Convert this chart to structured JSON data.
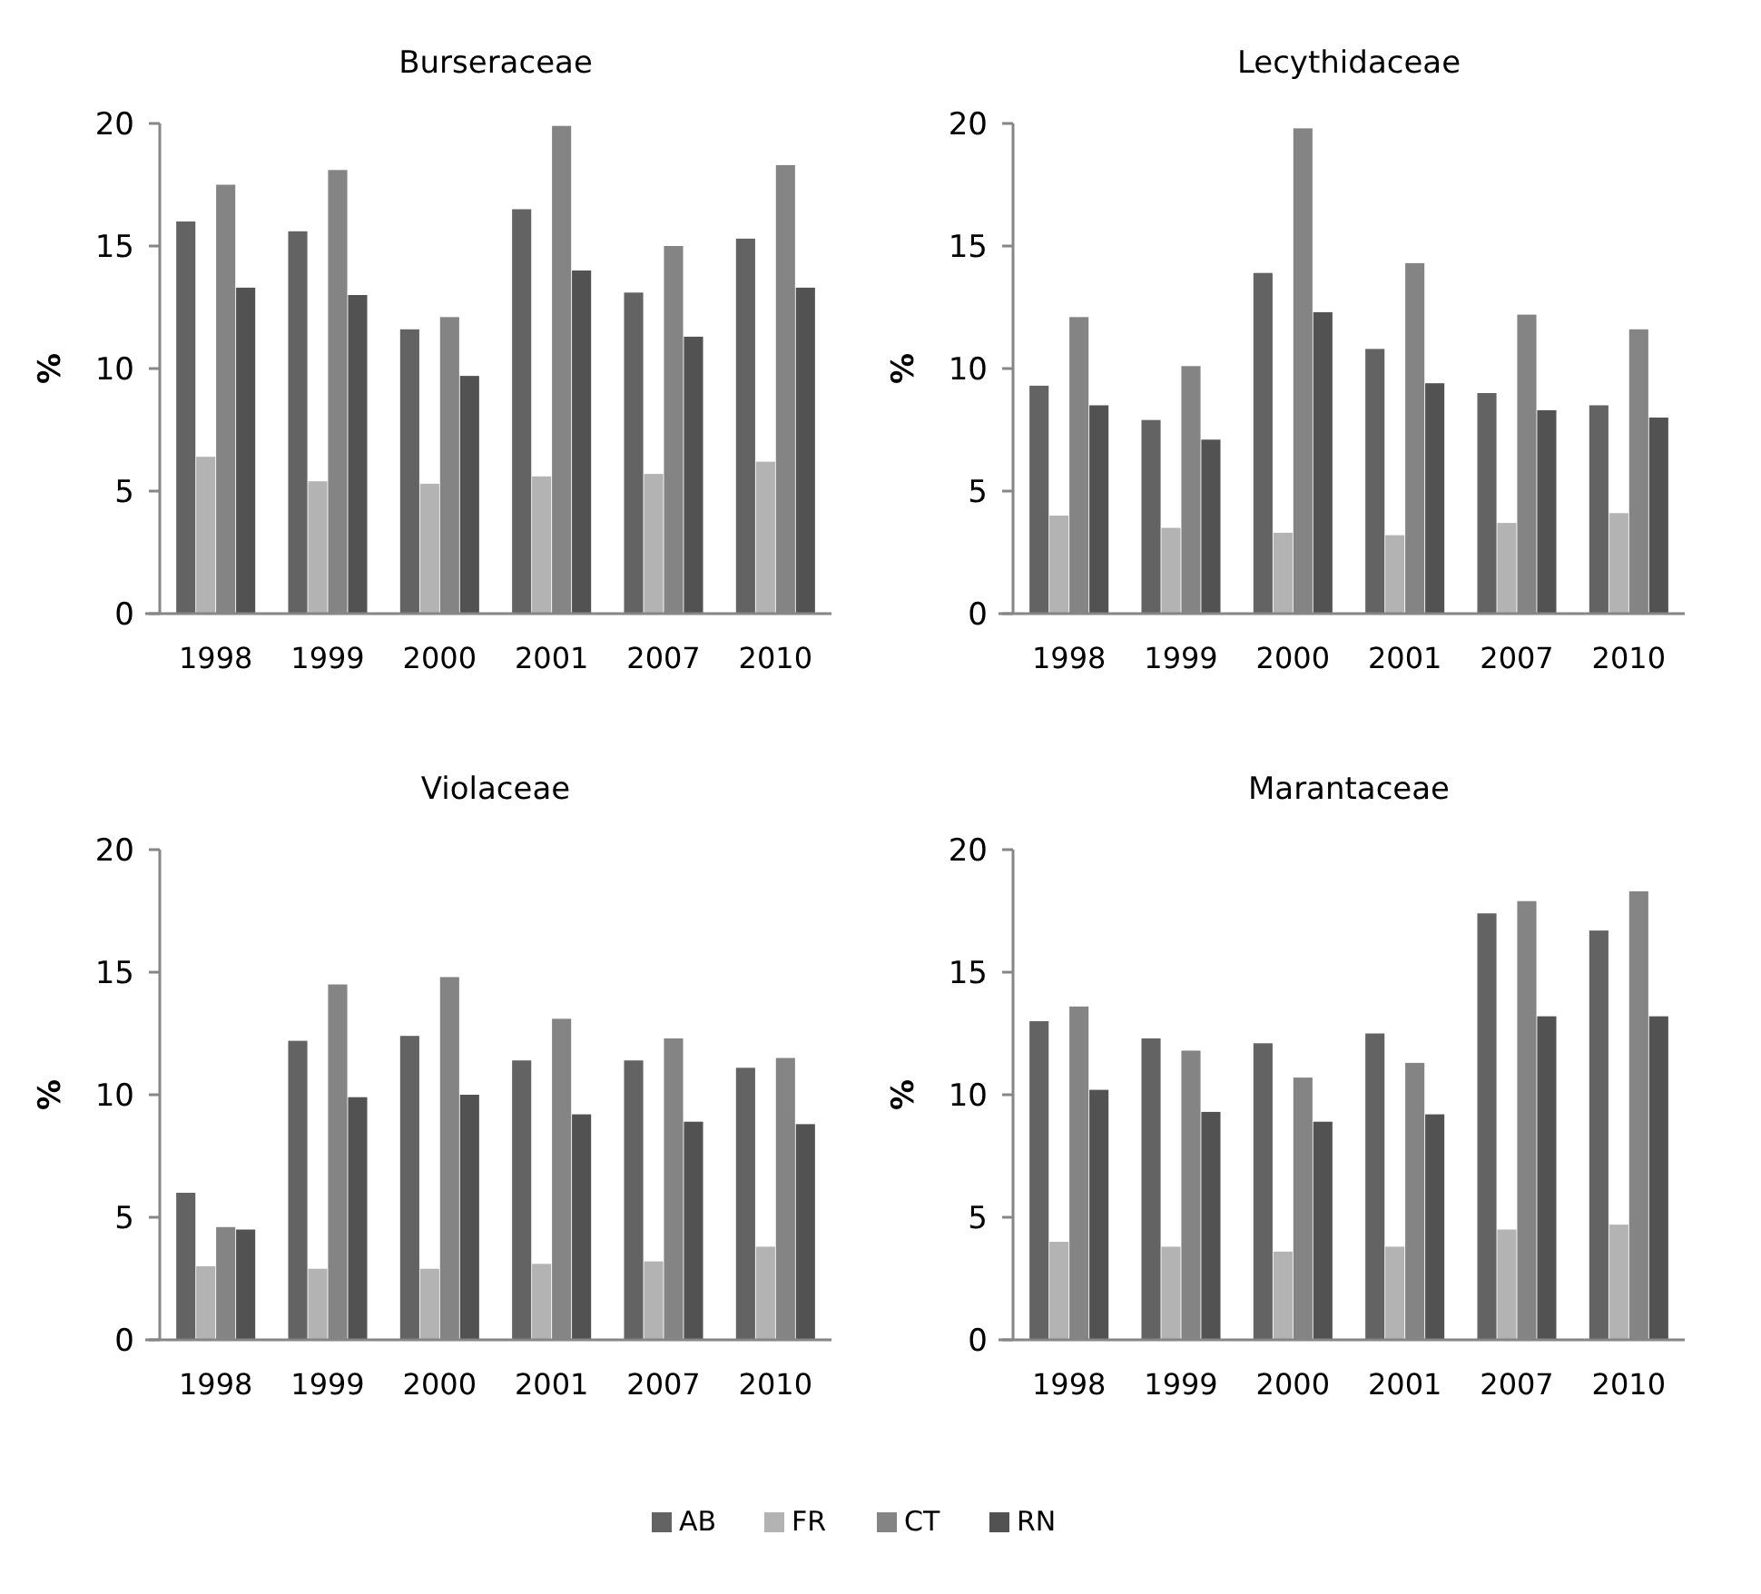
{
  "chart_data": [
    {
      "type": "bar",
      "title": "Burseraceae",
      "ylabel": "%",
      "categories": [
        "1998",
        "1999",
        "2000",
        "2001",
        "2007",
        "2010"
      ],
      "ylim": [
        0,
        20
      ],
      "yticks": [
        0,
        5,
        10,
        15,
        20
      ],
      "grid": false,
      "legend": "bottom",
      "series": [
        {
          "name": "AB",
          "color": "#636363",
          "values": [
            16.0,
            15.6,
            11.6,
            16.5,
            13.1,
            15.3
          ]
        },
        {
          "name": "FR",
          "color": "#b3b3b3",
          "values": [
            6.4,
            5.4,
            5.3,
            5.6,
            5.7,
            6.2
          ]
        },
        {
          "name": "CT",
          "color": "#848484",
          "values": [
            17.5,
            18.1,
            12.1,
            19.9,
            15.0,
            18.3
          ]
        },
        {
          "name": "RN",
          "color": "#525252",
          "values": [
            13.3,
            13.0,
            9.7,
            14.0,
            11.3,
            13.3
          ]
        }
      ]
    },
    {
      "type": "bar",
      "title": "Lecythidaceae",
      "ylabel": "%",
      "categories": [
        "1998",
        "1999",
        "2000",
        "2001",
        "2007",
        "2010"
      ],
      "ylim": [
        0,
        20
      ],
      "yticks": [
        0,
        5,
        10,
        15,
        20
      ],
      "grid": false,
      "series": [
        {
          "color": "#636363",
          "values": [
            9.3,
            7.9,
            13.9,
            10.8,
            9.0,
            8.5
          ]
        },
        {
          "color": "#b3b3b3",
          "values": [
            4.0,
            3.5,
            3.3,
            3.2,
            3.7,
            4.1
          ]
        },
        {
          "color": "#848484",
          "values": [
            12.1,
            10.1,
            19.8,
            14.3,
            12.2,
            11.6
          ]
        },
        {
          "color": "#525252",
          "values": [
            8.5,
            7.1,
            12.3,
            9.4,
            8.3,
            8.0
          ]
        }
      ]
    },
    {
      "type": "bar",
      "title": "Violaceae",
      "ylabel": "%",
      "categories": [
        "1998",
        "1999",
        "2000",
        "2001",
        "2007",
        "2010"
      ],
      "ylim": [
        0,
        20
      ],
      "yticks": [
        0,
        5,
        10,
        15,
        20
      ],
      "grid": false,
      "series": [
        {
          "color": "#636363",
          "values": [
            6.0,
            12.2,
            12.4,
            11.4,
            11.4,
            11.1
          ]
        },
        {
          "color": "#b3b3b3",
          "values": [
            3.0,
            2.9,
            2.9,
            3.1,
            3.2,
            3.8
          ]
        },
        {
          "color": "#848484",
          "values": [
            4.6,
            14.5,
            14.8,
            13.1,
            12.3,
            11.5
          ]
        },
        {
          "color": "#525252",
          "values": [
            4.5,
            9.9,
            10.0,
            9.2,
            8.9,
            8.8
          ]
        }
      ]
    },
    {
      "type": "bar",
      "title": "Marantaceae",
      "ylabel": "%",
      "categories": [
        "1998",
        "1999",
        "2000",
        "2001",
        "2007",
        "2010"
      ],
      "ylim": [
        0,
        20
      ],
      "yticks": [
        0,
        5,
        10,
        15,
        20
      ],
      "grid": false,
      "series": [
        {
          "color": "#636363",
          "values": [
            13.0,
            12.3,
            12.1,
            12.5,
            17.4,
            16.7
          ]
        },
        {
          "color": "#b3b3b3",
          "values": [
            4.0,
            3.8,
            3.6,
            3.8,
            4.5,
            4.7
          ]
        },
        {
          "color": "#848484",
          "values": [
            13.6,
            11.8,
            10.7,
            11.3,
            17.9,
            18.3
          ]
        },
        {
          "color": "#525252",
          "values": [
            10.2,
            9.3,
            8.9,
            9.2,
            13.2,
            13.2
          ]
        }
      ]
    }
  ]
}
